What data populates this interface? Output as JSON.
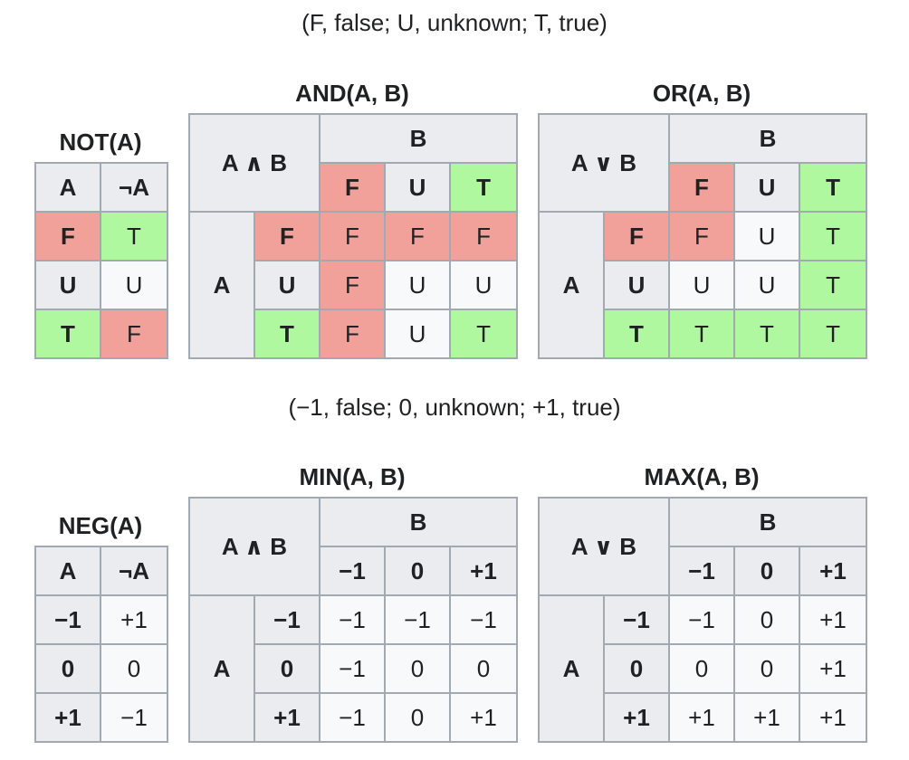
{
  "legend_top": "(F, false; U, unknown; T, true)",
  "legend_bottom": "(−1, false; 0, unknown; +1, true)",
  "not": {
    "caption": "NOT(A)",
    "head_a": "A",
    "head_not": "¬A",
    "rows": [
      {
        "a": "F",
        "na": "T",
        "ca": "cF",
        "cna": "cT"
      },
      {
        "a": "U",
        "na": "U",
        "ca": "",
        "cna": "cU"
      },
      {
        "a": "T",
        "na": "F",
        "ca": "cT",
        "cna": "cF"
      }
    ]
  },
  "and": {
    "caption": "AND(A, B)",
    "corner": "A ∧ B",
    "b_label": "B",
    "a_label": "A",
    "cols": [
      "F",
      "U",
      "T"
    ],
    "col_classes": [
      "cF",
      "",
      "cT"
    ],
    "row_heads": [
      "F",
      "U",
      "T"
    ],
    "row_head_classes": [
      "cF",
      "",
      "cT"
    ],
    "cells": [
      [
        "F",
        "F",
        "F"
      ],
      [
        "F",
        "U",
        "U"
      ],
      [
        "F",
        "U",
        "T"
      ]
    ],
    "cell_classes": [
      [
        "cF",
        "cF",
        "cF"
      ],
      [
        "cF",
        "cU",
        "cU"
      ],
      [
        "cF",
        "cU",
        "cT"
      ]
    ]
  },
  "or": {
    "caption": "OR(A, B)",
    "corner": "A ∨ B",
    "b_label": "B",
    "a_label": "A",
    "cols": [
      "F",
      "U",
      "T"
    ],
    "col_classes": [
      "cF",
      "",
      "cT"
    ],
    "row_heads": [
      "F",
      "U",
      "T"
    ],
    "row_head_classes": [
      "cF",
      "",
      "cT"
    ],
    "cells": [
      [
        "F",
        "U",
        "T"
      ],
      [
        "U",
        "U",
        "T"
      ],
      [
        "T",
        "T",
        "T"
      ]
    ],
    "cell_classes": [
      [
        "cF",
        "cU",
        "cT"
      ],
      [
        "cU",
        "cU",
        "cT"
      ],
      [
        "cT",
        "cT",
        "cT"
      ]
    ]
  },
  "neg": {
    "caption": "NEG(A)",
    "head_a": "A",
    "head_not": "¬A",
    "rows": [
      {
        "a": "−1",
        "na": "+1"
      },
      {
        "a": "0",
        "na": "0"
      },
      {
        "a": "+1",
        "na": "−1"
      }
    ]
  },
  "min": {
    "caption": "MIN(A, B)",
    "corner": "A ∧ B",
    "b_label": "B",
    "a_label": "A",
    "cols": [
      "−1",
      "0",
      "+1"
    ],
    "row_heads": [
      "−1",
      "0",
      "+1"
    ],
    "cells": [
      [
        "−1",
        "−1",
        "−1"
      ],
      [
        "−1",
        "0",
        "0"
      ],
      [
        "−1",
        "0",
        "+1"
      ]
    ]
  },
  "max": {
    "caption": "MAX(A, B)",
    "corner": "A ∨ B",
    "b_label": "B",
    "a_label": "A",
    "cols": [
      "−1",
      "0",
      "+1"
    ],
    "row_heads": [
      "−1",
      "0",
      "+1"
    ],
    "cells": [
      [
        "−1",
        "0",
        "+1"
      ],
      [
        "0",
        "0",
        "+1"
      ],
      [
        "+1",
        "+1",
        "+1"
      ]
    ]
  }
}
